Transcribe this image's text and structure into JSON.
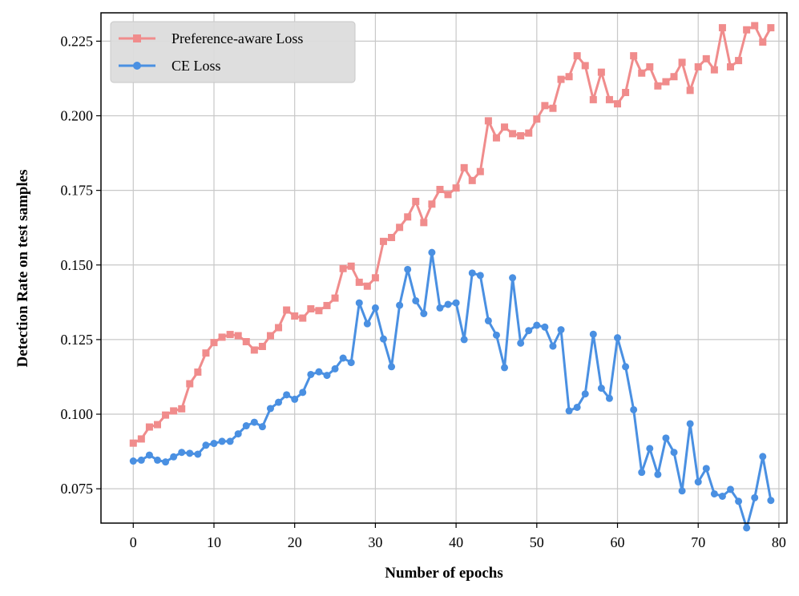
{
  "chart_data": {
    "type": "line",
    "xlabel": "Number of epochs",
    "ylabel": "Detection Rate on test samples",
    "xlim": [
      -4,
      81
    ],
    "ylim": [
      0.0635,
      0.2345
    ],
    "xticks": [
      0,
      10,
      20,
      30,
      40,
      50,
      60,
      70,
      80
    ],
    "xtick_labels": [
      "0",
      "10",
      "20",
      "30",
      "40",
      "50",
      "60",
      "70",
      "80"
    ],
    "yticks": [
      0.075,
      0.1,
      0.125,
      0.15,
      0.175,
      0.2,
      0.225
    ],
    "ytick_labels": [
      "0.075",
      "0.100",
      "0.125",
      "0.150",
      "0.175",
      "0.200",
      "0.225"
    ],
    "grid": true,
    "legend_position": "top-left",
    "x": [
      0,
      1,
      2,
      3,
      4,
      5,
      6,
      7,
      8,
      9,
      10,
      11,
      12,
      13,
      14,
      15,
      16,
      17,
      18,
      19,
      20,
      21,
      22,
      23,
      24,
      25,
      26,
      27,
      28,
      29,
      30,
      31,
      32,
      33,
      34,
      35,
      36,
      37,
      38,
      39,
      40,
      41,
      42,
      43,
      44,
      45,
      46,
      47,
      48,
      49,
      50,
      51,
      52,
      53,
      54,
      55,
      56,
      57,
      58,
      59,
      60,
      61,
      62,
      63,
      64,
      65,
      66,
      67,
      68,
      69,
      70,
      71,
      72,
      73,
      74,
      75,
      76,
      77,
      78,
      79
    ],
    "series": [
      {
        "name": "Preference-aware Loss",
        "color": "#f08c8c",
        "marker": "square",
        "values": [
          0.0903,
          0.0917,
          0.0957,
          0.0965,
          0.0997,
          0.1011,
          0.1018,
          0.1102,
          0.1141,
          0.1205,
          0.124,
          0.1258,
          0.1267,
          0.1263,
          0.1243,
          0.1215,
          0.1227,
          0.1263,
          0.129,
          0.1349,
          0.1329,
          0.1322,
          0.1353,
          0.1347,
          0.1364,
          0.1389,
          0.1488,
          0.1496,
          0.1442,
          0.1429,
          0.1457,
          0.1579,
          0.1592,
          0.1626,
          0.1661,
          0.1713,
          0.1642,
          0.1704,
          0.1753,
          0.1736,
          0.1758,
          0.1826,
          0.1783,
          0.1813,
          0.1983,
          0.1926,
          0.1962,
          0.194,
          0.1933,
          0.1942,
          0.1989,
          0.2034,
          0.2025,
          0.2122,
          0.2131,
          0.2201,
          0.2168,
          0.2054,
          0.2146,
          0.2054,
          0.204,
          0.2078,
          0.2201,
          0.2143,
          0.2164,
          0.21,
          0.2114,
          0.2131,
          0.2179,
          0.2085,
          0.2164,
          0.2191,
          0.2154,
          0.2295,
          0.2164,
          0.2185,
          0.2288,
          0.2302,
          0.2247,
          0.2295
        ]
      },
      {
        "name": "CE Loss",
        "color": "#4a90e2",
        "marker": "circle",
        "values": [
          0.0843,
          0.0846,
          0.0863,
          0.0846,
          0.084,
          0.0857,
          0.0872,
          0.0869,
          0.0866,
          0.0896,
          0.0902,
          0.0909,
          0.0909,
          0.0934,
          0.0961,
          0.0973,
          0.0958,
          0.1019,
          0.104,
          0.1065,
          0.105,
          0.1073,
          0.1133,
          0.1142,
          0.113,
          0.1152,
          0.1188,
          0.1173,
          0.1373,
          0.1303,
          0.1356,
          0.1252,
          0.1159,
          0.1365,
          0.1485,
          0.138,
          0.1337,
          0.1542,
          0.1356,
          0.1368,
          0.1373,
          0.125,
          0.1473,
          0.1465,
          0.1313,
          0.1265,
          0.1156,
          0.1457,
          0.1238,
          0.128,
          0.1298,
          0.1292,
          0.1228,
          0.1283,
          0.1011,
          0.1023,
          0.1068,
          0.1268,
          0.1087,
          0.1053,
          0.1256,
          0.1159,
          0.1015,
          0.0805,
          0.0885,
          0.0798,
          0.092,
          0.0872,
          0.0743,
          0.0968,
          0.0773,
          0.0818,
          0.0733,
          0.0725,
          0.0748,
          0.0708,
          0.0619,
          0.072,
          0.0858,
          0.0711
        ]
      }
    ]
  }
}
